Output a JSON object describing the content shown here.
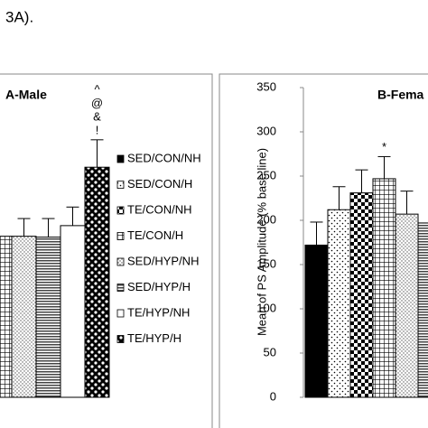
{
  "caption_fragment": "3A).",
  "chart_data": [
    {
      "type": "bar",
      "title": "A-Male",
      "categories": [
        "SED/CON/NH",
        "SED/CON/H",
        "TE/CON/NH",
        "TE/CON/H",
        "SED/HYP/NH",
        "SED/HYP/H",
        "TE/HYP/NH",
        "TE/HYP/H"
      ],
      "values": [
        null,
        null,
        null,
        182,
        182,
        181,
        194,
        260
      ],
      "errors": [
        null,
        null,
        null,
        null,
        20,
        21,
        21,
        31
      ],
      "annotations": [
        {
          "bar": 7,
          "labels": [
            "^",
            "@",
            "&",
            "!"
          ]
        }
      ],
      "ylim": [
        0,
        350
      ]
    },
    {
      "type": "bar",
      "title": "B-Fema",
      "ylabel": "Mean of PS Amplitude (% base line)",
      "values": [
        172,
        212,
        231,
        247,
        207,
        197
      ],
      "errors": [
        26,
        26,
        26,
        25,
        26,
        null
      ],
      "annotations": [
        {
          "bar": 3,
          "labels": [
            "*"
          ]
        }
      ],
      "ylim": [
        0,
        350
      ],
      "yticks": [
        0,
        50,
        100,
        150,
        200,
        250,
        300,
        350
      ]
    }
  ]
}
